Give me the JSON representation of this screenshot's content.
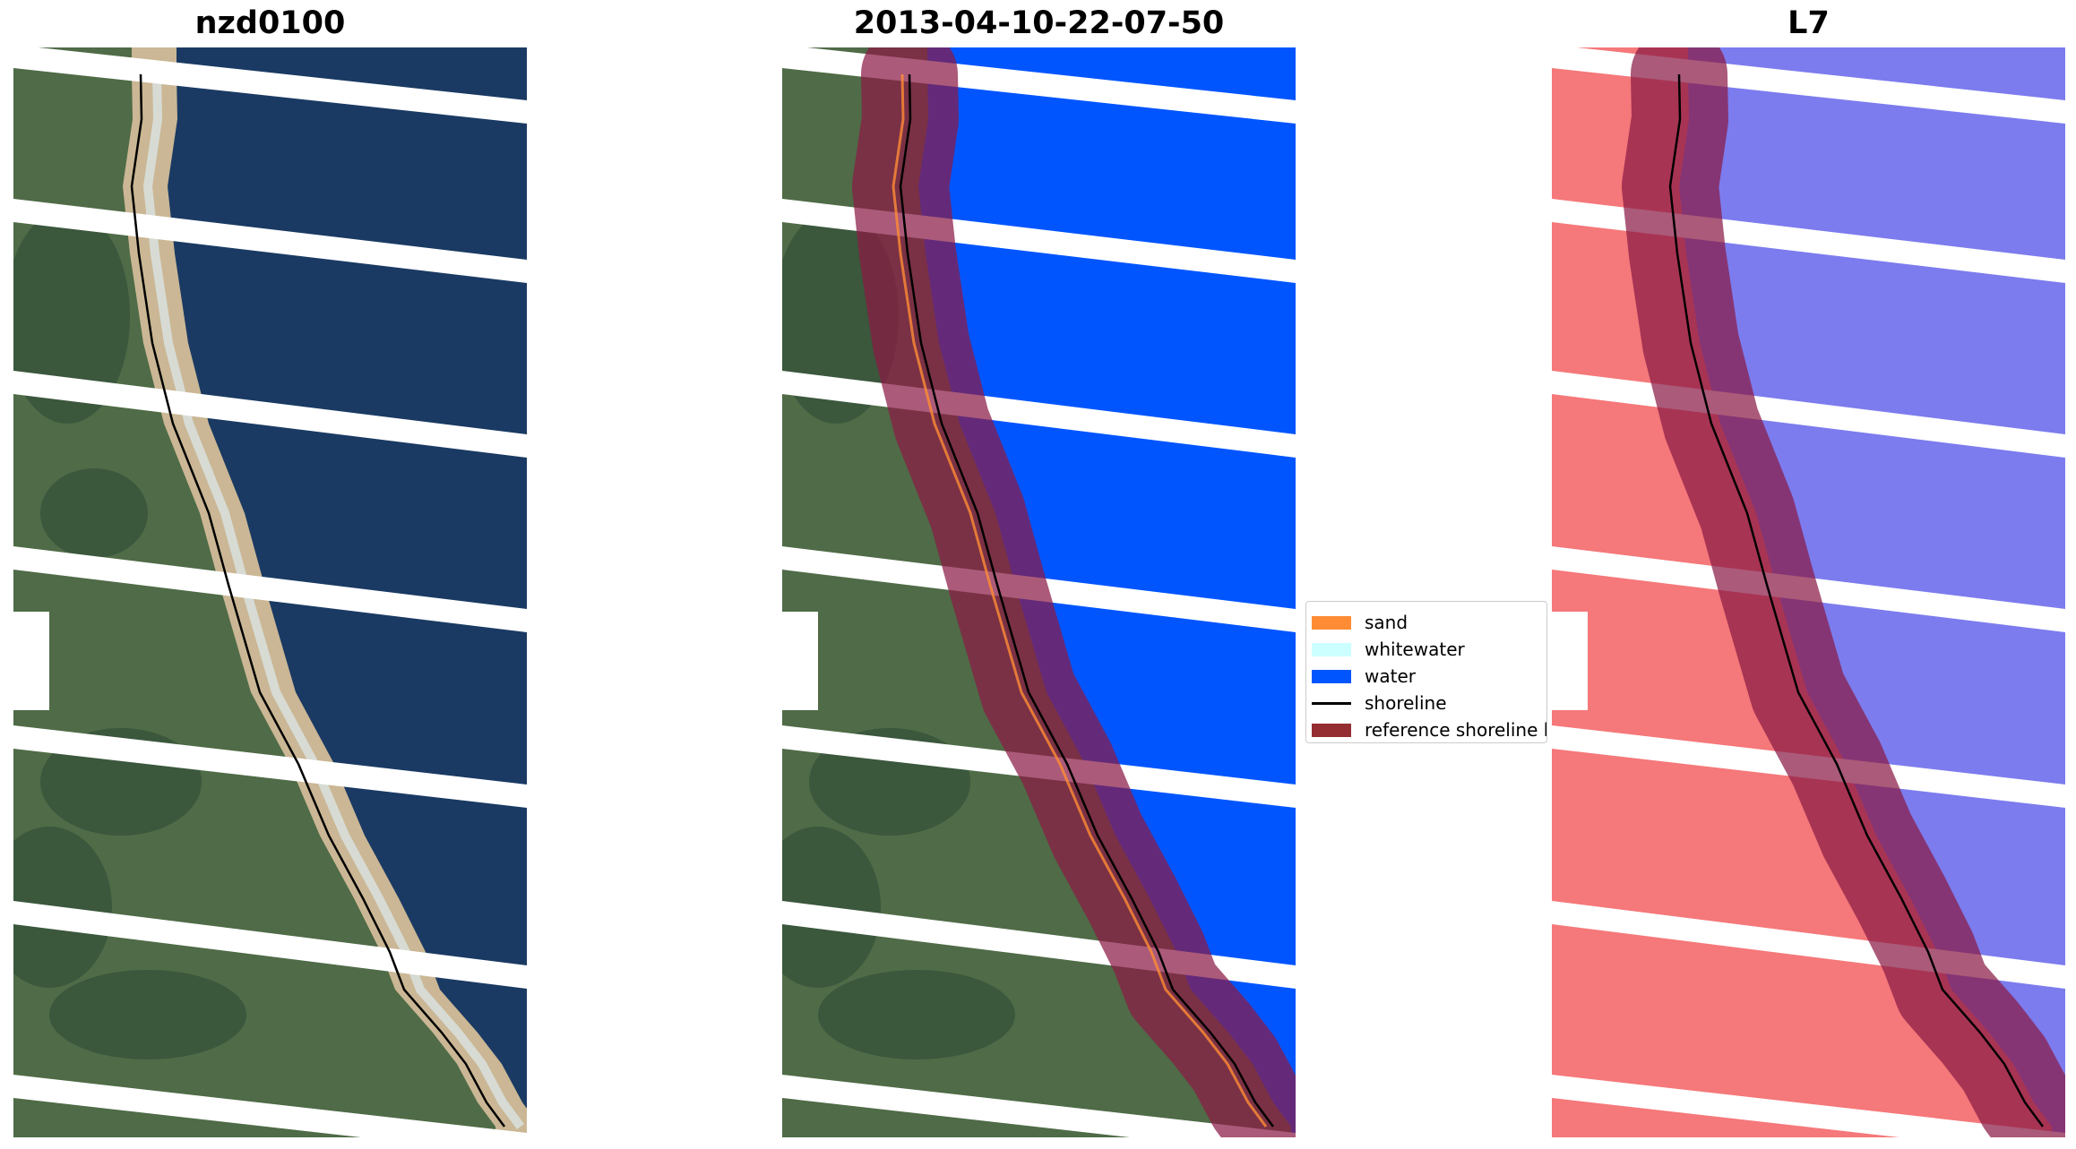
{
  "panels": [
    {
      "title": "nzd0100",
      "kind": "rgb-image"
    },
    {
      "title": "2013-04-10-22-07-50",
      "kind": "classified-image"
    },
    {
      "title": "L7",
      "kind": "mndwi-image"
    }
  ],
  "legend": {
    "placement": "center-right",
    "items": [
      {
        "label": "sand",
        "type": "patch",
        "color": "#ff8c35"
      },
      {
        "label": "whitewater",
        "type": "patch",
        "color": "#ccffff"
      },
      {
        "label": "water",
        "type": "patch",
        "color": "#0055ff"
      },
      {
        "label": "shoreline",
        "type": "line",
        "color": "#000000"
      },
      {
        "label": "reference shoreline buffer",
        "type": "patch",
        "color": "#952e33"
      }
    ]
  },
  "colors": {
    "land": "#4f6b47",
    "land_dark": "#2f4a35",
    "sand": "#cbb795",
    "ocean": "#1a3a63",
    "water_class": "#0055ff",
    "buffer": "#8b1a45",
    "mndwi_land": "#f5787a",
    "mndwi_water": "#7c7cee",
    "gap": "#ffffff"
  }
}
